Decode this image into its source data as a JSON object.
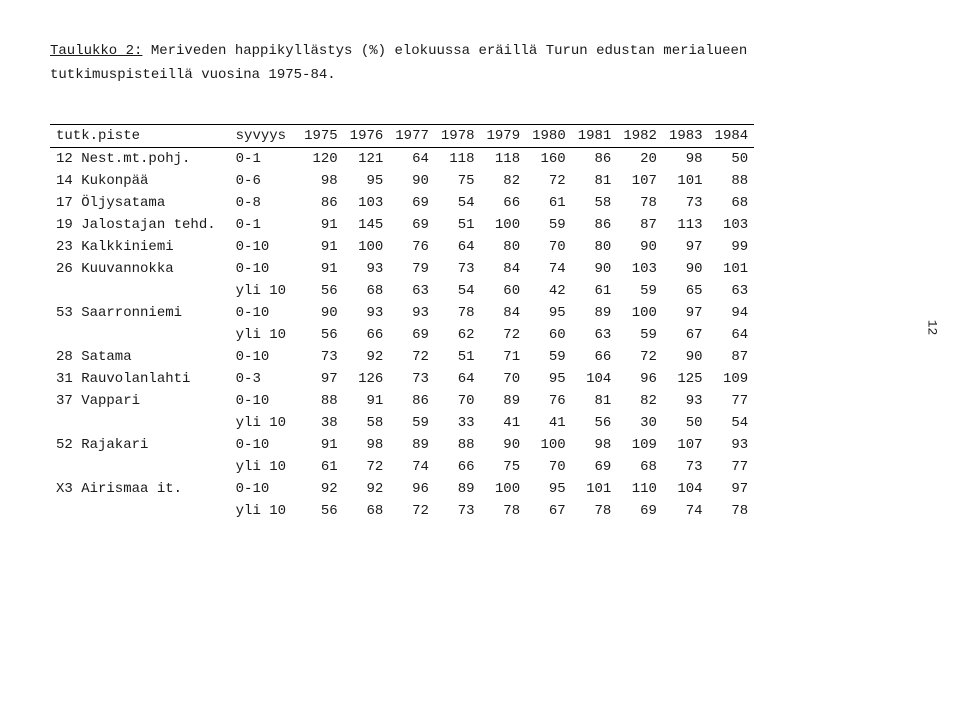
{
  "title_part1": "Taulukko 2:",
  "title_part2": " Meriveden happikyllästys (%) elokuussa eräillä Turun edustan merialueen",
  "title_line2": "tutkimuspisteillä vuosina 1975-84.",
  "page_number": "12",
  "headers": {
    "site": "tutk.piste",
    "depth": "syvyys",
    "years": [
      "1975",
      "1976",
      "1977",
      "1978",
      "1979",
      "1980",
      "1981",
      "1982",
      "1983",
      "1984"
    ]
  },
  "rows": [
    {
      "label": "12 Nest.mt.pohj.",
      "depth": "0-1",
      "vals": [
        "120",
        "121",
        "64",
        "118",
        "118",
        "160",
        "86",
        "20",
        "98",
        "50"
      ]
    },
    {
      "label": "14 Kukonpää",
      "depth": "0-6",
      "vals": [
        "98",
        "95",
        "90",
        "75",
        "82",
        "72",
        "81",
        "107",
        "101",
        "88"
      ]
    },
    {
      "label": "17 Öljysatama",
      "depth": "0-8",
      "vals": [
        "86",
        "103",
        "69",
        "54",
        "66",
        "61",
        "58",
        "78",
        "73",
        "68"
      ]
    },
    {
      "label": "19 Jalostajan tehd.",
      "depth": "0-1",
      "vals": [
        "91",
        "145",
        "69",
        "51",
        "100",
        "59",
        "86",
        "87",
        "113",
        "103"
      ]
    },
    {
      "label": "23 Kalkkiniemi",
      "depth": "0-10",
      "vals": [
        "91",
        "100",
        "76",
        "64",
        "80",
        "70",
        "80",
        "90",
        "97",
        "99"
      ]
    },
    {
      "label": "26 Kuuvannokka",
      "depth": "0-10",
      "vals": [
        "91",
        "93",
        "79",
        "73",
        "84",
        "74",
        "90",
        "103",
        "90",
        "101"
      ]
    },
    {
      "label": "",
      "depth": "yli 10",
      "vals": [
        "56",
        "68",
        "63",
        "54",
        "60",
        "42",
        "61",
        "59",
        "65",
        "63"
      ]
    },
    {
      "label": "53 Saarronniemi",
      "depth": "0-10",
      "vals": [
        "90",
        "93",
        "93",
        "78",
        "84",
        "95",
        "89",
        "100",
        "97",
        "94"
      ]
    },
    {
      "label": "",
      "depth": "yli 10",
      "vals": [
        "56",
        "66",
        "69",
        "62",
        "72",
        "60",
        "63",
        "59",
        "67",
        "64"
      ]
    },
    {
      "label": "28 Satama",
      "depth": "0-10",
      "vals": [
        "73",
        "92",
        "72",
        "51",
        "71",
        "59",
        "66",
        "72",
        "90",
        "87"
      ]
    },
    {
      "label": "31 Rauvolanlahti",
      "depth": "0-3",
      "vals": [
        "97",
        "126",
        "73",
        "64",
        "70",
        "95",
        "104",
        "96",
        "125",
        "109"
      ]
    },
    {
      "label": "37 Vappari",
      "depth": "0-10",
      "vals": [
        "88",
        "91",
        "86",
        "70",
        "89",
        "76",
        "81",
        "82",
        "93",
        "77"
      ]
    },
    {
      "label": "",
      "depth": "yli 10",
      "vals": [
        "38",
        "58",
        "59",
        "33",
        "41",
        "41",
        "56",
        "30",
        "50",
        "54"
      ]
    },
    {
      "label": "52 Rajakari",
      "depth": "0-10",
      "vals": [
        "91",
        "98",
        "89",
        "88",
        "90",
        "100",
        "98",
        "109",
        "107",
        "93"
      ]
    },
    {
      "label": "",
      "depth": "yli 10",
      "vals": [
        "61",
        "72",
        "74",
        "66",
        "75",
        "70",
        "69",
        "68",
        "73",
        "77"
      ]
    },
    {
      "label": "X3 Airismaa it.",
      "depth": "0-10",
      "vals": [
        "92",
        "92",
        "96",
        "89",
        "100",
        "95",
        "101",
        "110",
        "104",
        "97"
      ]
    },
    {
      "label": "",
      "depth": "yli 10",
      "vals": [
        "56",
        "68",
        "72",
        "73",
        "78",
        "67",
        "78",
        "69",
        "74",
        "78"
      ]
    }
  ]
}
